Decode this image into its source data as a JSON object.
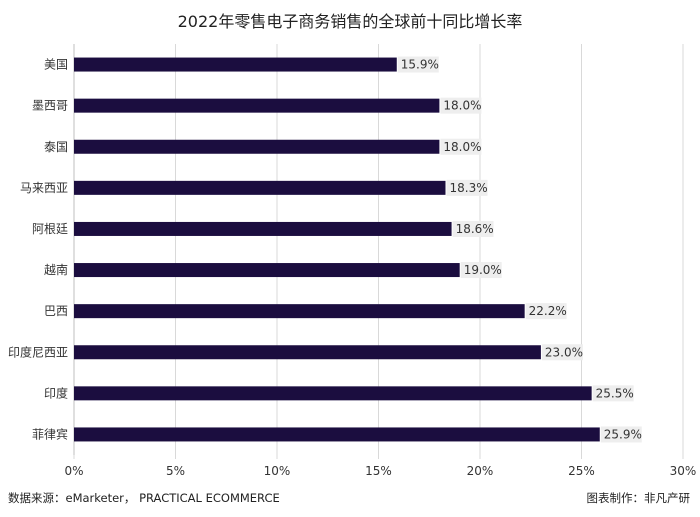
{
  "chart_data": {
    "type": "bar",
    "orientation": "horizontal",
    "title": "2022年零售电子商务销售的全球前十同比增长率",
    "categories": [
      "美国",
      "墨西哥",
      "泰国",
      "马来西亚",
      "阿根廷",
      "越南",
      "巴西",
      "印度尼西亚",
      "印度",
      "菲律宾"
    ],
    "values": [
      15.9,
      18.0,
      18.0,
      18.3,
      18.6,
      19.0,
      22.2,
      23.0,
      25.5,
      25.9
    ],
    "data_labels": [
      "15.9%",
      "18.0%",
      "18.0%",
      "18.3%",
      "18.6%",
      "19.0%",
      "22.2%",
      "23.0%",
      "25.5%",
      "25.9%"
    ],
    "x_ticks": [
      "0%",
      "5%",
      "10%",
      "15%",
      "20%",
      "25%",
      "30%"
    ],
    "xlim": [
      0,
      30
    ],
    "xlabel": "",
    "ylabel": "",
    "grid": true,
    "bar_color": "#1b0d3f"
  },
  "footer": {
    "source": "数据来源：eMarketer， PRACTICAL ECOMMERCE",
    "credit": "图表制作：非凡产研"
  }
}
